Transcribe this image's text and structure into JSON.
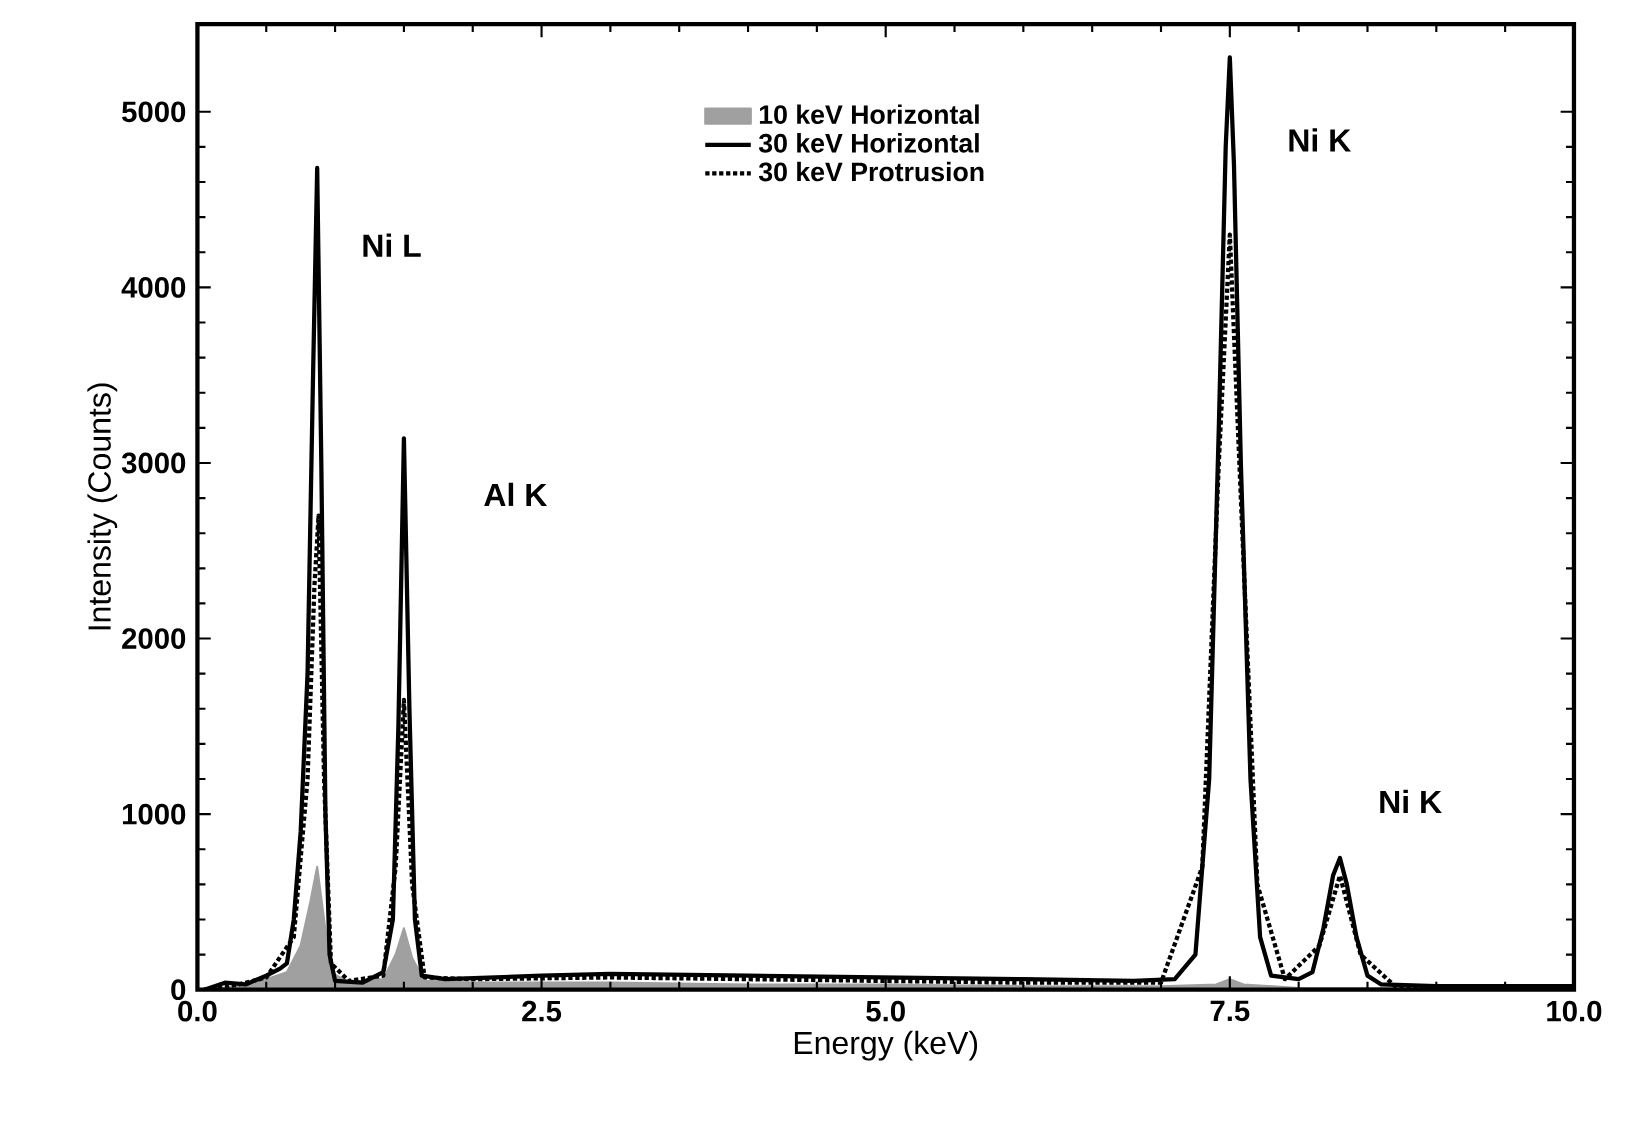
{
  "chart_data": {
    "type": "line",
    "xlabel": "Energy (keV)",
    "ylabel": "Intensity (Counts)",
    "xlim": [
      0,
      10
    ],
    "ylim": [
      0,
      5500
    ],
    "xticks": [
      {
        "value": 0,
        "label": "0.0"
      },
      {
        "value": 2.5,
        "label": "2.5"
      },
      {
        "value": 5,
        "label": "5.0"
      },
      {
        "value": 7.5,
        "label": "7.5"
      },
      {
        "value": 10,
        "label": "10.0"
      }
    ],
    "yticks": [
      0,
      1000,
      2000,
      3000,
      4000,
      5000
    ],
    "legend": "top",
    "grid": false,
    "marker": "none",
    "annotations": [
      "Ni L",
      "Al K",
      "Ni K",
      "Ni K"
    ],
    "series": [
      {
        "name": "10 keV Horizontal",
        "type": "area",
        "color": "#a0a0a0",
        "x": [
          0.05,
          0.3,
          0.5,
          0.65,
          0.75,
          0.82,
          0.87,
          0.92,
          0.97,
          1.1,
          1.35,
          1.44,
          1.5,
          1.56,
          1.65,
          2.0,
          3.0,
          4.0,
          5.0,
          6.0,
          7.0,
          7.4,
          7.5,
          7.6,
          8.0,
          9.0,
          10.0
        ],
        "values": [
          0,
          20,
          60,
          100,
          250,
          500,
          700,
          400,
          100,
          40,
          60,
          200,
          350,
          180,
          50,
          40,
          40,
          30,
          30,
          20,
          20,
          30,
          60,
          30,
          10,
          10,
          10
        ]
      },
      {
        "name": "30 keV Horizontal",
        "color": "#000000",
        "line_style": "solid",
        "x": [
          0.05,
          0.2,
          0.35,
          0.5,
          0.6,
          0.65,
          0.7,
          0.75,
          0.8,
          0.84,
          0.87,
          0.9,
          0.93,
          0.96,
          1.0,
          1.2,
          1.35,
          1.42,
          1.46,
          1.5,
          1.54,
          1.58,
          1.63,
          1.8,
          2.5,
          3.0,
          4.0,
          5.0,
          6.0,
          6.8,
          7.1,
          7.25,
          7.35,
          7.42,
          7.47,
          7.5,
          7.53,
          7.58,
          7.65,
          7.72,
          7.8,
          8.0,
          8.1,
          8.18,
          8.25,
          8.3,
          8.35,
          8.42,
          8.5,
          8.6,
          9.0,
          10.0
        ],
        "values": [
          0,
          40,
          30,
          80,
          120,
          150,
          400,
          900,
          1800,
          3500,
          4680,
          3000,
          1000,
          200,
          50,
          40,
          100,
          400,
          1500,
          3140,
          1600,
          400,
          80,
          60,
          80,
          90,
          80,
          70,
          60,
          50,
          60,
          200,
          1200,
          3200,
          4800,
          5310,
          4700,
          3000,
          1200,
          300,
          80,
          60,
          100,
          350,
          650,
          750,
          600,
          300,
          80,
          30,
          20,
          20
        ]
      },
      {
        "name": "30 keV Protrusion",
        "color": "#000000",
        "line_style": "dotted",
        "x": [
          0.05,
          0.3,
          0.5,
          0.7,
          0.8,
          0.85,
          0.88,
          0.92,
          0.97,
          1.1,
          1.35,
          1.44,
          1.5,
          1.56,
          1.65,
          2.0,
          3.0,
          4.0,
          5.0,
          6.0,
          7.0,
          7.3,
          7.42,
          7.5,
          7.58,
          7.7,
          7.9,
          8.15,
          8.3,
          8.45,
          8.7,
          10.0
        ],
        "values": [
          0,
          30,
          70,
          300,
          1200,
          2300,
          2700,
          1200,
          150,
          50,
          80,
          700,
          1650,
          600,
          70,
          60,
          70,
          60,
          50,
          40,
          40,
          700,
          3000,
          4300,
          2800,
          600,
          60,
          250,
          650,
          200,
          20,
          20
        ]
      }
    ]
  }
}
